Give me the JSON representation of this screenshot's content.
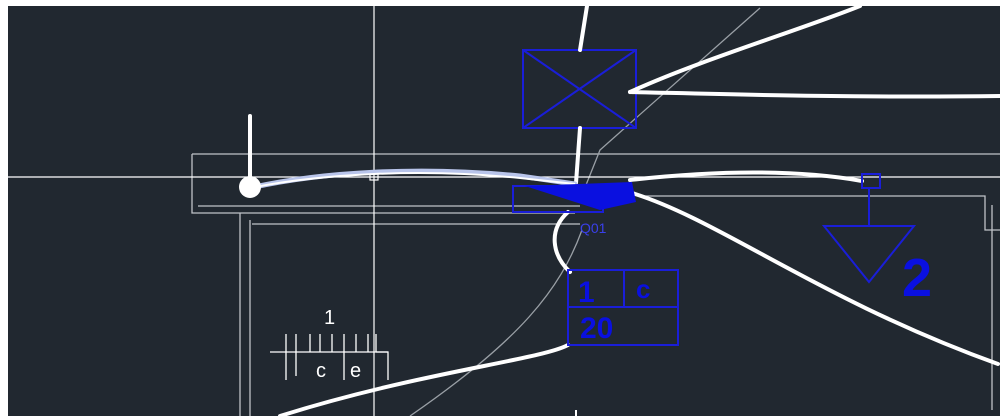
{
  "app": {
    "type": "cad-model-space",
    "background_color": "#212830"
  },
  "colors": {
    "line_white": "#ffffff",
    "line_grey": "#9aa0a6",
    "blue": "#0a10e0",
    "highlight": "#b8c4ea"
  },
  "labels": {
    "device_tag": "Q01",
    "terminal_num": "1",
    "terminal_letter": "c",
    "terminal_value": "20",
    "ground_number": "2",
    "tick_number": "1",
    "tick_c": "c",
    "tick_e": "e"
  },
  "icons": {
    "box_with_cross": "x-box-icon",
    "ground_triangle": "ground-symbol-icon",
    "crosshair": "crosshair-cursor-icon"
  }
}
